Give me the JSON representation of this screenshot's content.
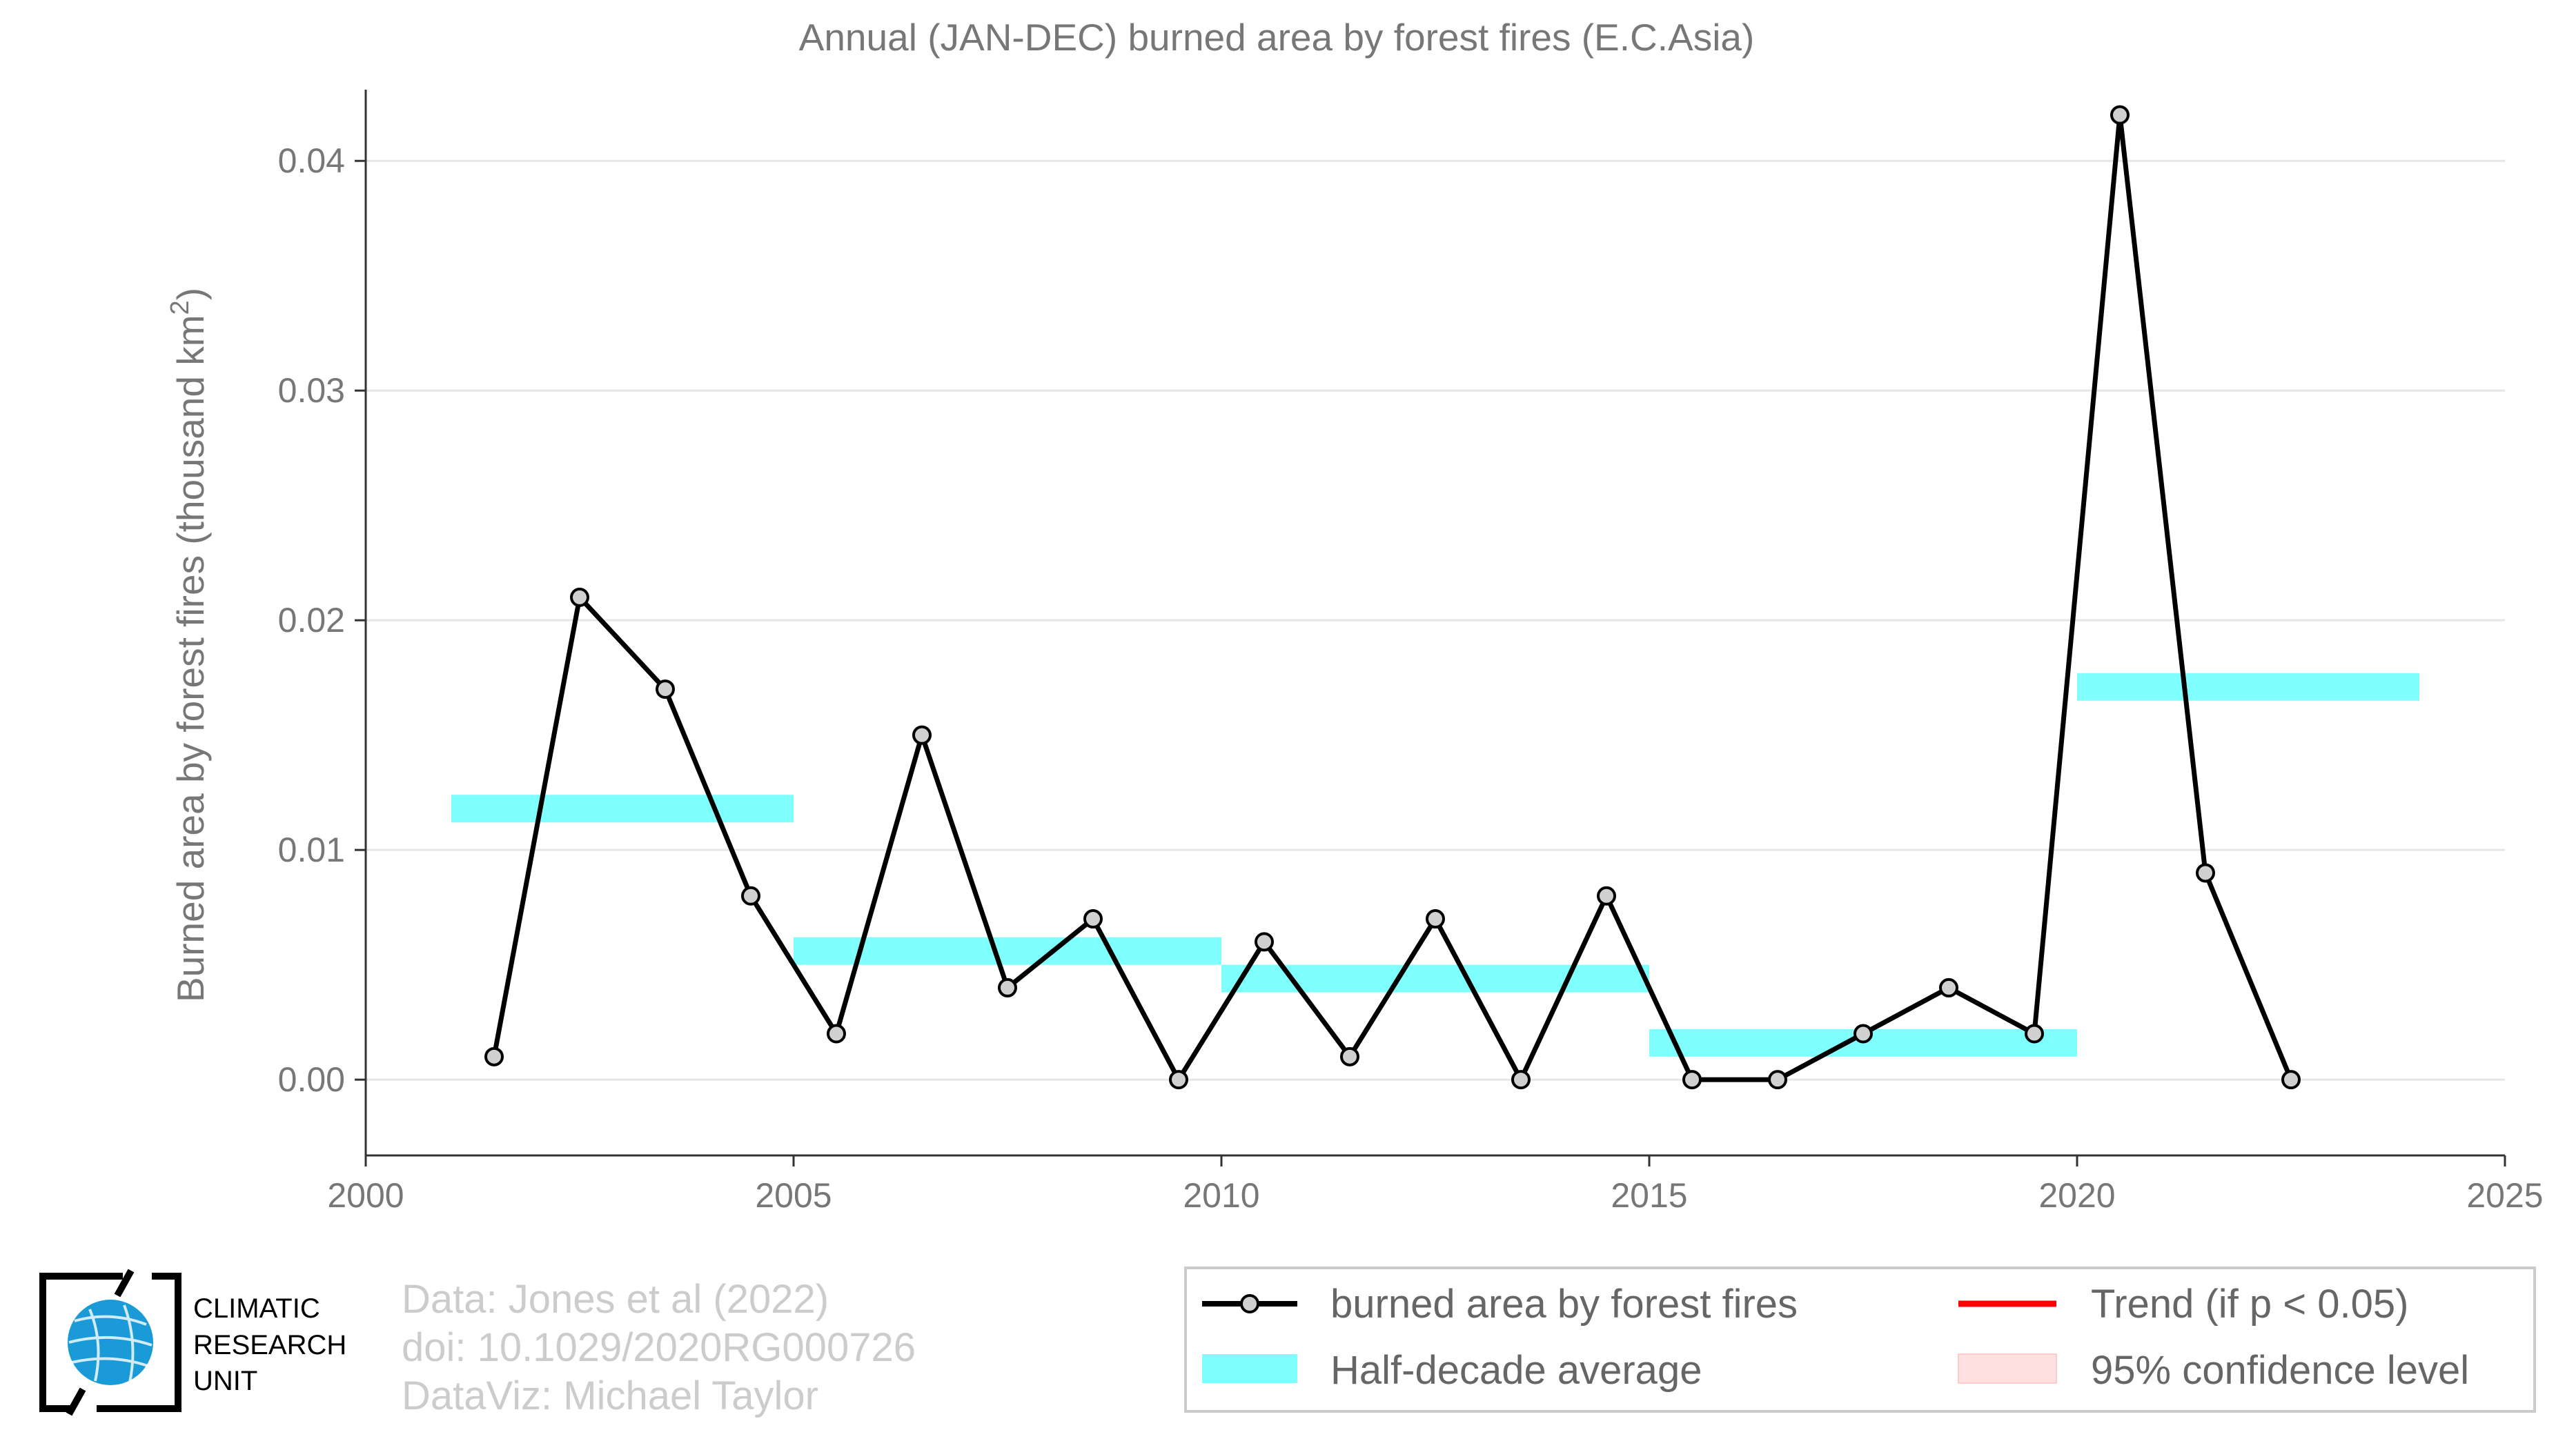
{
  "chart_data": {
    "type": "line",
    "title": "Annual (JAN-DEC) burned area by forest fires (E.C.Asia)",
    "ylabel_main": "Burned area by forest fires (thousand km",
    "ylabel_sup": "2",
    "ylabel_close": ")",
    "xlim": [
      2000,
      2025
    ],
    "ylim": [
      -0.0033,
      0.0425
    ],
    "xticks": [
      2000,
      2005,
      2010,
      2015,
      2020,
      2025
    ],
    "yticks": [
      0.0,
      0.01,
      0.02,
      0.03,
      0.04
    ],
    "ytick_labels": [
      "0.00",
      "0.01",
      "0.02",
      "0.03",
      "0.04"
    ],
    "grid": "horizontal",
    "series": [
      {
        "name": "burned area by forest fires",
        "kind": "line-with-markers",
        "color": "#000000",
        "marker_fill": "#d0d0d0",
        "x": [
          2001.5,
          2002.5,
          2003.5,
          2004.5,
          2005.5,
          2006.5,
          2007.5,
          2008.5,
          2009.5,
          2010.5,
          2011.5,
          2012.5,
          2013.5,
          2014.5,
          2015.5,
          2016.5,
          2017.5,
          2018.5,
          2019.5,
          2020.5,
          2021.5,
          2022.5
        ],
        "y": [
          0.001,
          0.021,
          0.017,
          0.008,
          0.002,
          0.015,
          0.004,
          0.007,
          0.0,
          0.006,
          0.001,
          0.007,
          0.0,
          0.008,
          0.0,
          0.0,
          0.002,
          0.004,
          0.002,
          0.042,
          0.009,
          0.0
        ]
      },
      {
        "name": "Half-decade average",
        "kind": "step-band",
        "color": "#80ffff",
        "segments": [
          {
            "x0": 2001,
            "x1": 2005,
            "y": 0.0118
          },
          {
            "x0": 2005,
            "x1": 2010,
            "y": 0.0056
          },
          {
            "x0": 2010,
            "x1": 2015,
            "y": 0.0044
          },
          {
            "x0": 2015,
            "x1": 2020,
            "y": 0.0016
          },
          {
            "x0": 2020,
            "x1": 2024,
            "y": 0.0171
          }
        ]
      }
    ],
    "legend": {
      "placement": "bottom-right",
      "entries": [
        {
          "label": "burned area by forest fires",
          "swatch": "line-marker",
          "color": "#000000"
        },
        {
          "label": "Trend (if p < 0.05)",
          "swatch": "line",
          "color": "#ff0000"
        },
        {
          "label": "Half-decade average",
          "swatch": "band",
          "color": "#80ffff"
        },
        {
          "label": "95% confidence level",
          "swatch": "band",
          "color": "#ffe0e0"
        }
      ]
    }
  },
  "credits": [
    "Data: Jones et al (2022)",
    "doi: 10.1029/2020RG000726",
    "DataViz: Michael Taylor"
  ],
  "logo": {
    "lines": [
      "CLIMATIC",
      "RESEARCH",
      "UNIT"
    ],
    "icon": "globe-icon",
    "color": "#1a9ad6"
  }
}
